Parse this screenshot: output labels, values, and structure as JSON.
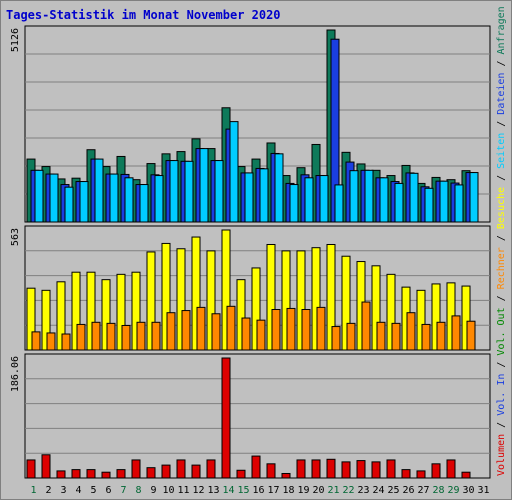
{
  "chart_data": {
    "type": "bar",
    "title": "Tages-Statistik im Monat November 2020",
    "colors": {
      "background": "#c0c0c0",
      "panel": "#c0c0c0",
      "title": "#0000cc",
      "day_weekday": "#000000",
      "day_weekend": "#006633",
      "anfragen": "#0e7a5a",
      "dateien": "#1a3ee0",
      "seiten": "#00ccff",
      "besuche": "#ffff00",
      "rechner": "#ff8800",
      "volumen": "#dd0000"
    },
    "days": [
      "1",
      "2",
      "3",
      "4",
      "5",
      "6",
      "7",
      "8",
      "9",
      "10",
      "11",
      "12",
      "13",
      "14",
      "15",
      "16",
      "17",
      "18",
      "19",
      "20",
      "21",
      "22",
      "23",
      "24",
      "25",
      "26",
      "27",
      "28",
      "29",
      "30",
      "31"
    ],
    "weekend_days": [
      1,
      7,
      8,
      14,
      15,
      21,
      22,
      28,
      29
    ],
    "panels": [
      {
        "max_label": "5126",
        "ylim": [
          0,
          5126
        ],
        "series": [
          {
            "name": "Anfragen",
            "color": "#0e7a5a",
            "values": [
              1680,
              1480,
              1150,
              1170,
              1930,
              1480,
              1750,
              1130,
              1560,
              1820,
              1880,
              2220,
              1960,
              3050,
              1480,
              1680,
              2110,
              1240,
              1450,
              2070,
              5126,
              1860,
              1550,
              1380,
              1240,
              1510,
              1030,
              1190,
              1130,
              1370,
              0
            ]
          },
          {
            "name": "Dateien",
            "color": "#1a3ee0",
            "values": [
              1380,
              1280,
              1000,
              1080,
              1680,
              1280,
              1270,
              1000,
              1260,
              1640,
              1620,
              1960,
              1640,
              2480,
              1310,
              1430,
              1830,
              1030,
              1260,
              1240,
              4880,
              1600,
              1380,
              1180,
              1080,
              1310,
              940,
              1090,
              1040,
              1320,
              0
            ]
          },
          {
            "name": "Seiten",
            "color": "#00ccff",
            "values": [
              1380,
              1280,
              930,
              1080,
              1680,
              1280,
              1180,
              1000,
              1240,
              1640,
              1620,
              1960,
              1640,
              2680,
              1310,
              1420,
              1820,
              1000,
              1180,
              1240,
              990,
              1370,
              1380,
              1180,
              1030,
              1300,
              900,
              1090,
              990,
              1320,
              0
            ]
          }
        ]
      },
      {
        "max_label": "563",
        "ylim": [
          0,
          563
        ],
        "series": [
          {
            "name": "Besuche",
            "color": "#ffff00",
            "values": [
              290,
              280,
              320,
              365,
              365,
              330,
              355,
              365,
              460,
              500,
              475,
              530,
              465,
              563,
              330,
              385,
              495,
              465,
              465,
              480,
              495,
              440,
              415,
              395,
              355,
              295,
              280,
              310,
              315,
              300,
              0
            ]
          },
          {
            "name": "Rechner",
            "color": "#ff8800",
            "values": [
              85,
              80,
              75,
              120,
              130,
              125,
              115,
              130,
              130,
              175,
              185,
              200,
              170,
              205,
              150,
              140,
              190,
              195,
              190,
              200,
              110,
              125,
              225,
              130,
              125,
              175,
              120,
              130,
              160,
              135,
              0
            ]
          }
        ]
      },
      {
        "max_label": "186.06",
        "ylim": [
          0,
          186.06
        ],
        "series": [
          {
            "name": "Volumen",
            "color": "#dd0000",
            "values": [
              28,
              36,
              11,
              13,
              13,
              9,
              13,
              28,
              16,
              20,
              28,
              20,
              28,
              186.06,
              12,
              34,
              22,
              7,
              28,
              28,
              29,
              25,
              27,
              25,
              28,
              13,
              11,
              22,
              28,
              9,
              0
            ]
          }
        ]
      }
    ],
    "right_label": [
      {
        "text": "Volumen",
        "color": "#dd0000"
      },
      {
        "text": " / ",
        "color": "#000000"
      },
      {
        "text": "Vol. In",
        "color": "#1a3ee0"
      },
      {
        "text": " / ",
        "color": "#000000"
      },
      {
        "text": "Vol. Out",
        "color": "#008800"
      },
      {
        "text": " / ",
        "color": "#000000"
      },
      {
        "text": "Rechner",
        "color": "#ff8800"
      },
      {
        "text": " / ",
        "color": "#000000"
      },
      {
        "text": "Besuche",
        "color": "#ffff00"
      },
      {
        "text": " / ",
        "color": "#000000"
      },
      {
        "text": "Seiten",
        "color": "#00ccff"
      },
      {
        "text": " / ",
        "color": "#000000"
      },
      {
        "text": "Dateien",
        "color": "#1a3ee0"
      },
      {
        "text": " / ",
        "color": "#000000"
      },
      {
        "text": "Anfragen",
        "color": "#0e7a5a"
      }
    ]
  }
}
